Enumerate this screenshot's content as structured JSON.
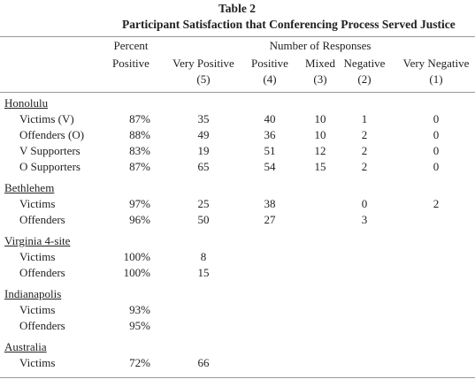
{
  "header": {
    "table_label": "Table 2",
    "title": "Participant Satisfaction that Conferencing Process Served Justice"
  },
  "columns": {
    "percent": [
      "Percent",
      "Positive"
    ],
    "group": "Number of Responses",
    "responses": [
      [
        "Very Positive",
        "(5)"
      ],
      [
        "Positive",
        "(4)"
      ],
      [
        "Mixed",
        "(3)"
      ],
      [
        "Negative",
        "(2)"
      ],
      [
        "Very Negative",
        "(1)"
      ]
    ]
  },
  "table": {
    "groups": [
      {
        "name": "Honolulu",
        "rows": [
          {
            "label": "Victims (V)",
            "percent": "87%",
            "counts": [
              "35",
              "40",
              "10",
              "1",
              "0"
            ]
          },
          {
            "label": "Offenders (O)",
            "percent": "88%",
            "counts": [
              "49",
              "36",
              "10",
              "2",
              "0"
            ]
          },
          {
            "label": "V Supporters",
            "percent": "83%",
            "counts": [
              "19",
              "51",
              "12",
              "2",
              "0"
            ]
          },
          {
            "label": "O Supporters",
            "percent": "87%",
            "counts": [
              "65",
              "54",
              "15",
              "2",
              "0"
            ]
          }
        ]
      },
      {
        "name": "Bethlehem",
        "rows": [
          {
            "label": "Victims",
            "percent": "97%",
            "counts": [
              "25",
              "38",
              null,
              "0",
              "2"
            ]
          },
          {
            "label": "Offenders",
            "percent": "96%",
            "counts": [
              "50",
              "27",
              null,
              "3",
              null
            ]
          }
        ]
      },
      {
        "name": "Virginia 4-site",
        "rows": [
          {
            "label": "Victims",
            "percent": "100%",
            "counts": [
              "8",
              null,
              null,
              null,
              null
            ]
          },
          {
            "label": "Offenders",
            "percent": "100%",
            "counts": [
              "15",
              null,
              null,
              null,
              null
            ]
          }
        ]
      },
      {
        "name": "Indianapolis",
        "rows": [
          {
            "label": "Victims",
            "percent": "93%",
            "counts": [
              null,
              null,
              null,
              null,
              null
            ]
          },
          {
            "label": "Offenders",
            "percent": "95%",
            "counts": [
              null,
              null,
              null,
              null,
              null
            ]
          }
        ]
      },
      {
        "name": "Australia",
        "rows": [
          {
            "label": "Victims",
            "percent": "72%",
            "counts": [
              "66",
              null,
              null,
              null,
              null
            ]
          }
        ]
      }
    ]
  }
}
